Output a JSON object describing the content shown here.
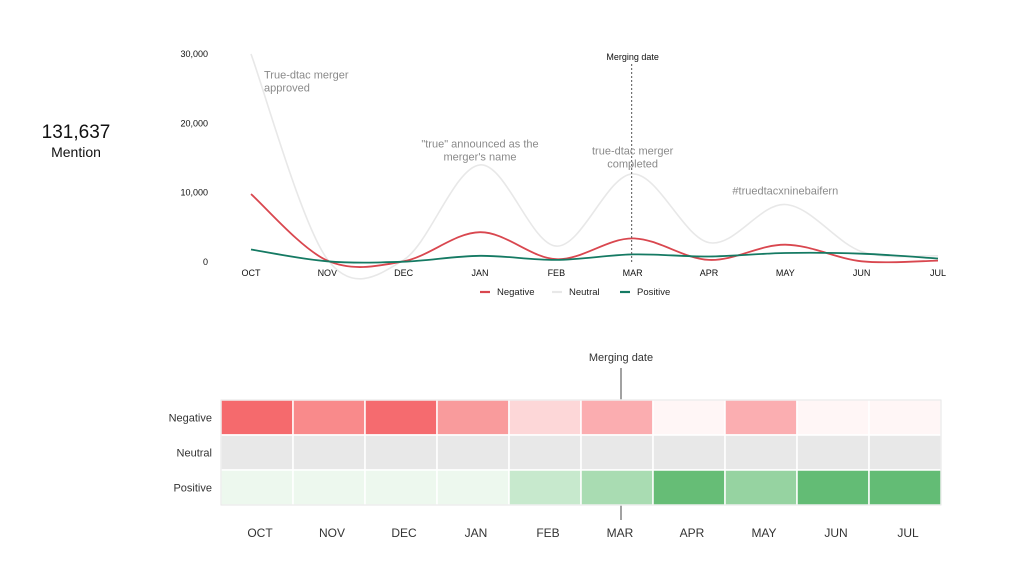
{
  "summary": {
    "total": "131,637",
    "label": "Mention"
  },
  "chart_data": [
    {
      "type": "line",
      "categories": [
        "OCT",
        "NOV",
        "DEC",
        "JAN",
        "FEB",
        "MAR",
        "APR",
        "MAY",
        "JUN",
        "JUL"
      ],
      "yticks": [
        "0",
        "10,000",
        "20,000",
        "30,000"
      ],
      "ylim": [
        0,
        30000
      ],
      "series": [
        {
          "name": "Negative",
          "color": "#d9474f",
          "values": [
            9800,
            200,
            100,
            4300,
            400,
            3400,
            300,
            2500,
            100,
            200
          ]
        },
        {
          "name": "Neutral",
          "color": "#e8e8e8",
          "values": [
            30000,
            400,
            300,
            14000,
            2300,
            12700,
            2800,
            8300,
            1500,
            900
          ]
        },
        {
          "name": "Positive",
          "color": "#157a63",
          "values": [
            1800,
            100,
            50,
            900,
            300,
            1100,
            800,
            1300,
            1200,
            500
          ]
        }
      ],
      "marker": {
        "label": "Merging date",
        "x": "MAR"
      },
      "annotations": [
        {
          "lines": [
            "True-dtac merger",
            "approved"
          ],
          "x": "OCT",
          "y": 26500,
          "anchor": "start"
        },
        {
          "lines": [
            "\"true\" announced as the",
            "merger's name"
          ],
          "x": "JAN",
          "y": 16500,
          "anchor": "middle"
        },
        {
          "lines": [
            "true-dtac merger",
            "completed"
          ],
          "x": "MAR",
          "y": 15500,
          "anchor": "middle"
        },
        {
          "lines": [
            "#truedtacxninebaifern"
          ],
          "x": "MAY",
          "y": 9700,
          "anchor": "middle"
        }
      ],
      "legend": [
        "Negative",
        "Neutral",
        "Positive"
      ],
      "legend_position": "bottom-center"
    },
    {
      "type": "heatmap",
      "rows": [
        "Negative",
        "Neutral",
        "Positive"
      ],
      "columns": [
        "OCT",
        "NOV",
        "DEC",
        "JAN",
        "FEB",
        "MAR",
        "APR",
        "MAY",
        "JUN",
        "JUL"
      ],
      "marker": {
        "label": "Merging date",
        "column": "MAR"
      },
      "cells": [
        [
          "#f56a6d",
          "#f98a8b",
          "#f56b6f",
          "#f99b9c",
          "#fdd7d8",
          "#fbadb0",
          "#fff6f6",
          "#fbaeb1",
          "#fff6f6",
          "#fff6f6"
        ],
        [
          "#e8e8e8",
          "#e8e8e8",
          "#e8e8e8",
          "#e8e8e8",
          "#e8e8e8",
          "#e8e8e8",
          "#e8e8e8",
          "#e8e8e8",
          "#e8e8e8",
          "#e8e8e8"
        ],
        [
          "#edf8ee",
          "#edf8ee",
          "#edf8ee",
          "#edf8ee",
          "#c7e9cd",
          "#a9dcb2",
          "#66bd76",
          "#96d3a1",
          "#63bc75",
          "#63bc75"
        ]
      ]
    }
  ]
}
